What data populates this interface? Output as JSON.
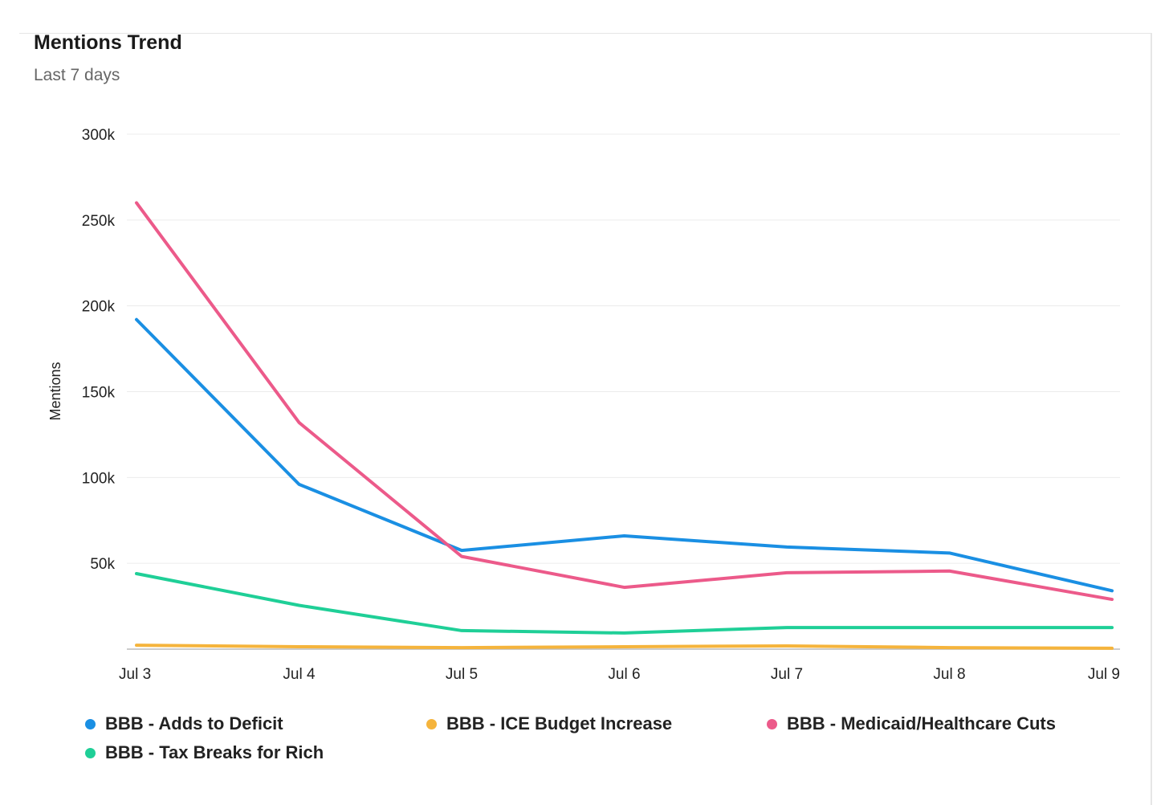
{
  "header": {
    "title": "Mentions Trend",
    "subtitle": "Last 7 days"
  },
  "chart_data": {
    "type": "line",
    "title": "Mentions Trend",
    "subtitle": "Last 7 days",
    "xlabel": "",
    "ylabel": "Mentions",
    "ylim": [
      0,
      300000
    ],
    "yticks": [
      50000,
      100000,
      150000,
      200000,
      250000,
      300000
    ],
    "ytick_labels": [
      "50k",
      "100k",
      "150k",
      "200k",
      "250k",
      "300k"
    ],
    "categories": [
      "Jul 3",
      "Jul 4",
      "Jul 5",
      "Jul 6",
      "Jul 7",
      "Jul 8",
      "Jul 9"
    ],
    "grid": true,
    "legend_position": "bottom",
    "series": [
      {
        "name": "BBB - Adds to Deficit",
        "color": "#1a8fe3",
        "values": [
          192000,
          96000,
          57500,
          66000,
          59500,
          56000,
          34000
        ]
      },
      {
        "name": "BBB - ICE Budget Increase",
        "color": "#f5b43c",
        "values": [
          2300,
          1400,
          900,
          1400,
          1900,
          900,
          500
        ]
      },
      {
        "name": "BBB - Medicaid/Healthcare Cuts",
        "color": "#ec5a8a",
        "values": [
          260000,
          132000,
          54000,
          36000,
          44500,
          45500,
          29000
        ]
      },
      {
        "name": "BBB - Tax Breaks for Rich",
        "color": "#1fcf97",
        "values": [
          44000,
          25500,
          10800,
          9400,
          12600,
          12600,
          12600
        ]
      }
    ]
  }
}
